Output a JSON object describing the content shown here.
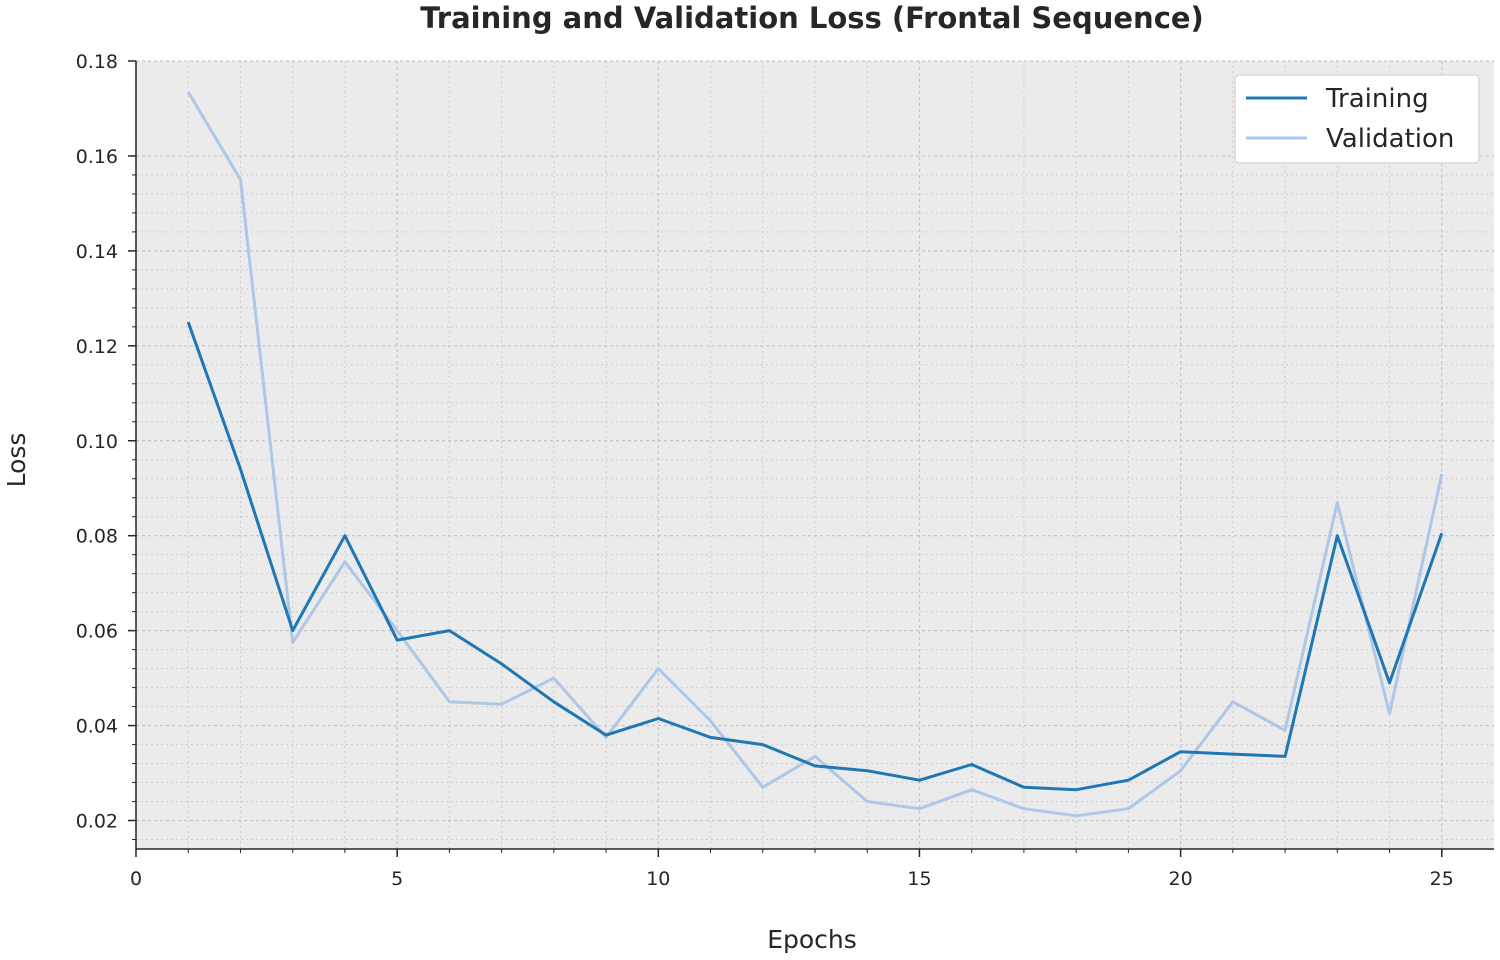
{
  "chart_data": {
    "type": "line",
    "title": "Training and Validation Loss (Frontal Sequence)",
    "xlabel": "Epochs",
    "ylabel": "Loss",
    "xlim": [
      0,
      26
    ],
    "ylim": [
      0.014,
      0.18
    ],
    "xticks": [
      0,
      5,
      10,
      15,
      20,
      25
    ],
    "xtick_labels": [
      "0",
      "5",
      "10",
      "15",
      "20",
      "25"
    ],
    "yticks": [
      0.02,
      0.04,
      0.06,
      0.08,
      0.1,
      0.12,
      0.14,
      0.16,
      0.18
    ],
    "ytick_labels": [
      "0.02",
      "0.04",
      "0.06",
      "0.08",
      "0.10",
      "0.12",
      "0.14",
      "0.16",
      "0.18"
    ],
    "grid": true,
    "legend_position": "top-right",
    "x": [
      1,
      2,
      3,
      4,
      5,
      6,
      7,
      8,
      9,
      10,
      11,
      12,
      13,
      14,
      15,
      16,
      17,
      18,
      19,
      20,
      21,
      22,
      23,
      24,
      25
    ],
    "series": [
      {
        "name": "Training",
        "color": "#1f77b4",
        "values": [
          0.125,
          0.094,
          0.06,
          0.08,
          0.058,
          0.06,
          0.053,
          0.045,
          0.038,
          0.0415,
          0.0375,
          0.036,
          0.0315,
          0.0305,
          0.0285,
          0.0318,
          0.027,
          0.0265,
          0.0285,
          0.0345,
          0.034,
          0.0335,
          0.08,
          0.049,
          0.0805
        ]
      },
      {
        "name": "Validation",
        "color": "#aec7e8",
        "values": [
          0.1735,
          0.155,
          0.0575,
          0.0745,
          0.06,
          0.045,
          0.0445,
          0.05,
          0.0375,
          0.052,
          0.041,
          0.027,
          0.0335,
          0.024,
          0.0225,
          0.0265,
          0.0225,
          0.021,
          0.0225,
          0.0305,
          0.045,
          0.039,
          0.087,
          0.0425,
          0.093
        ]
      }
    ]
  }
}
